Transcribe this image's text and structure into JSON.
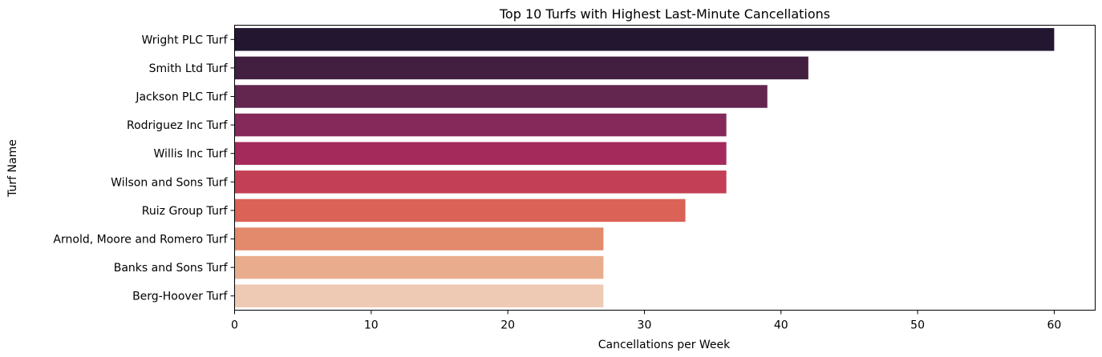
{
  "chart_data": {
    "type": "bar",
    "orientation": "horizontal",
    "title": "Top 10 Turfs with Highest Last-Minute Cancellations",
    "xlabel": "Cancellations per Week",
    "ylabel": "Turf Name",
    "categories": [
      "Wright PLC Turf",
      "Smith Ltd Turf",
      "Jackson PLC Turf",
      "Rodriguez Inc Turf",
      "Willis Inc Turf",
      "Wilson and Sons Turf",
      "Ruiz Group Turf",
      "Arnold, Moore and Romero Turf",
      "Banks and Sons Turf",
      "Berg-Hoover Turf"
    ],
    "values": [
      60,
      42,
      39,
      36,
      36,
      36,
      33,
      27,
      27,
      27
    ],
    "colors": [
      "#231630",
      "#421f40",
      "#63264f",
      "#84295a",
      "#a42a5b",
      "#c33f55",
      "#da6257",
      "#e3896c",
      "#e9ad8d",
      "#eecab5"
    ],
    "xlim": [
      0,
      63
    ],
    "xticks": [
      0,
      10,
      20,
      30,
      40,
      50,
      60
    ],
    "grid": false,
    "legend": "none"
  }
}
